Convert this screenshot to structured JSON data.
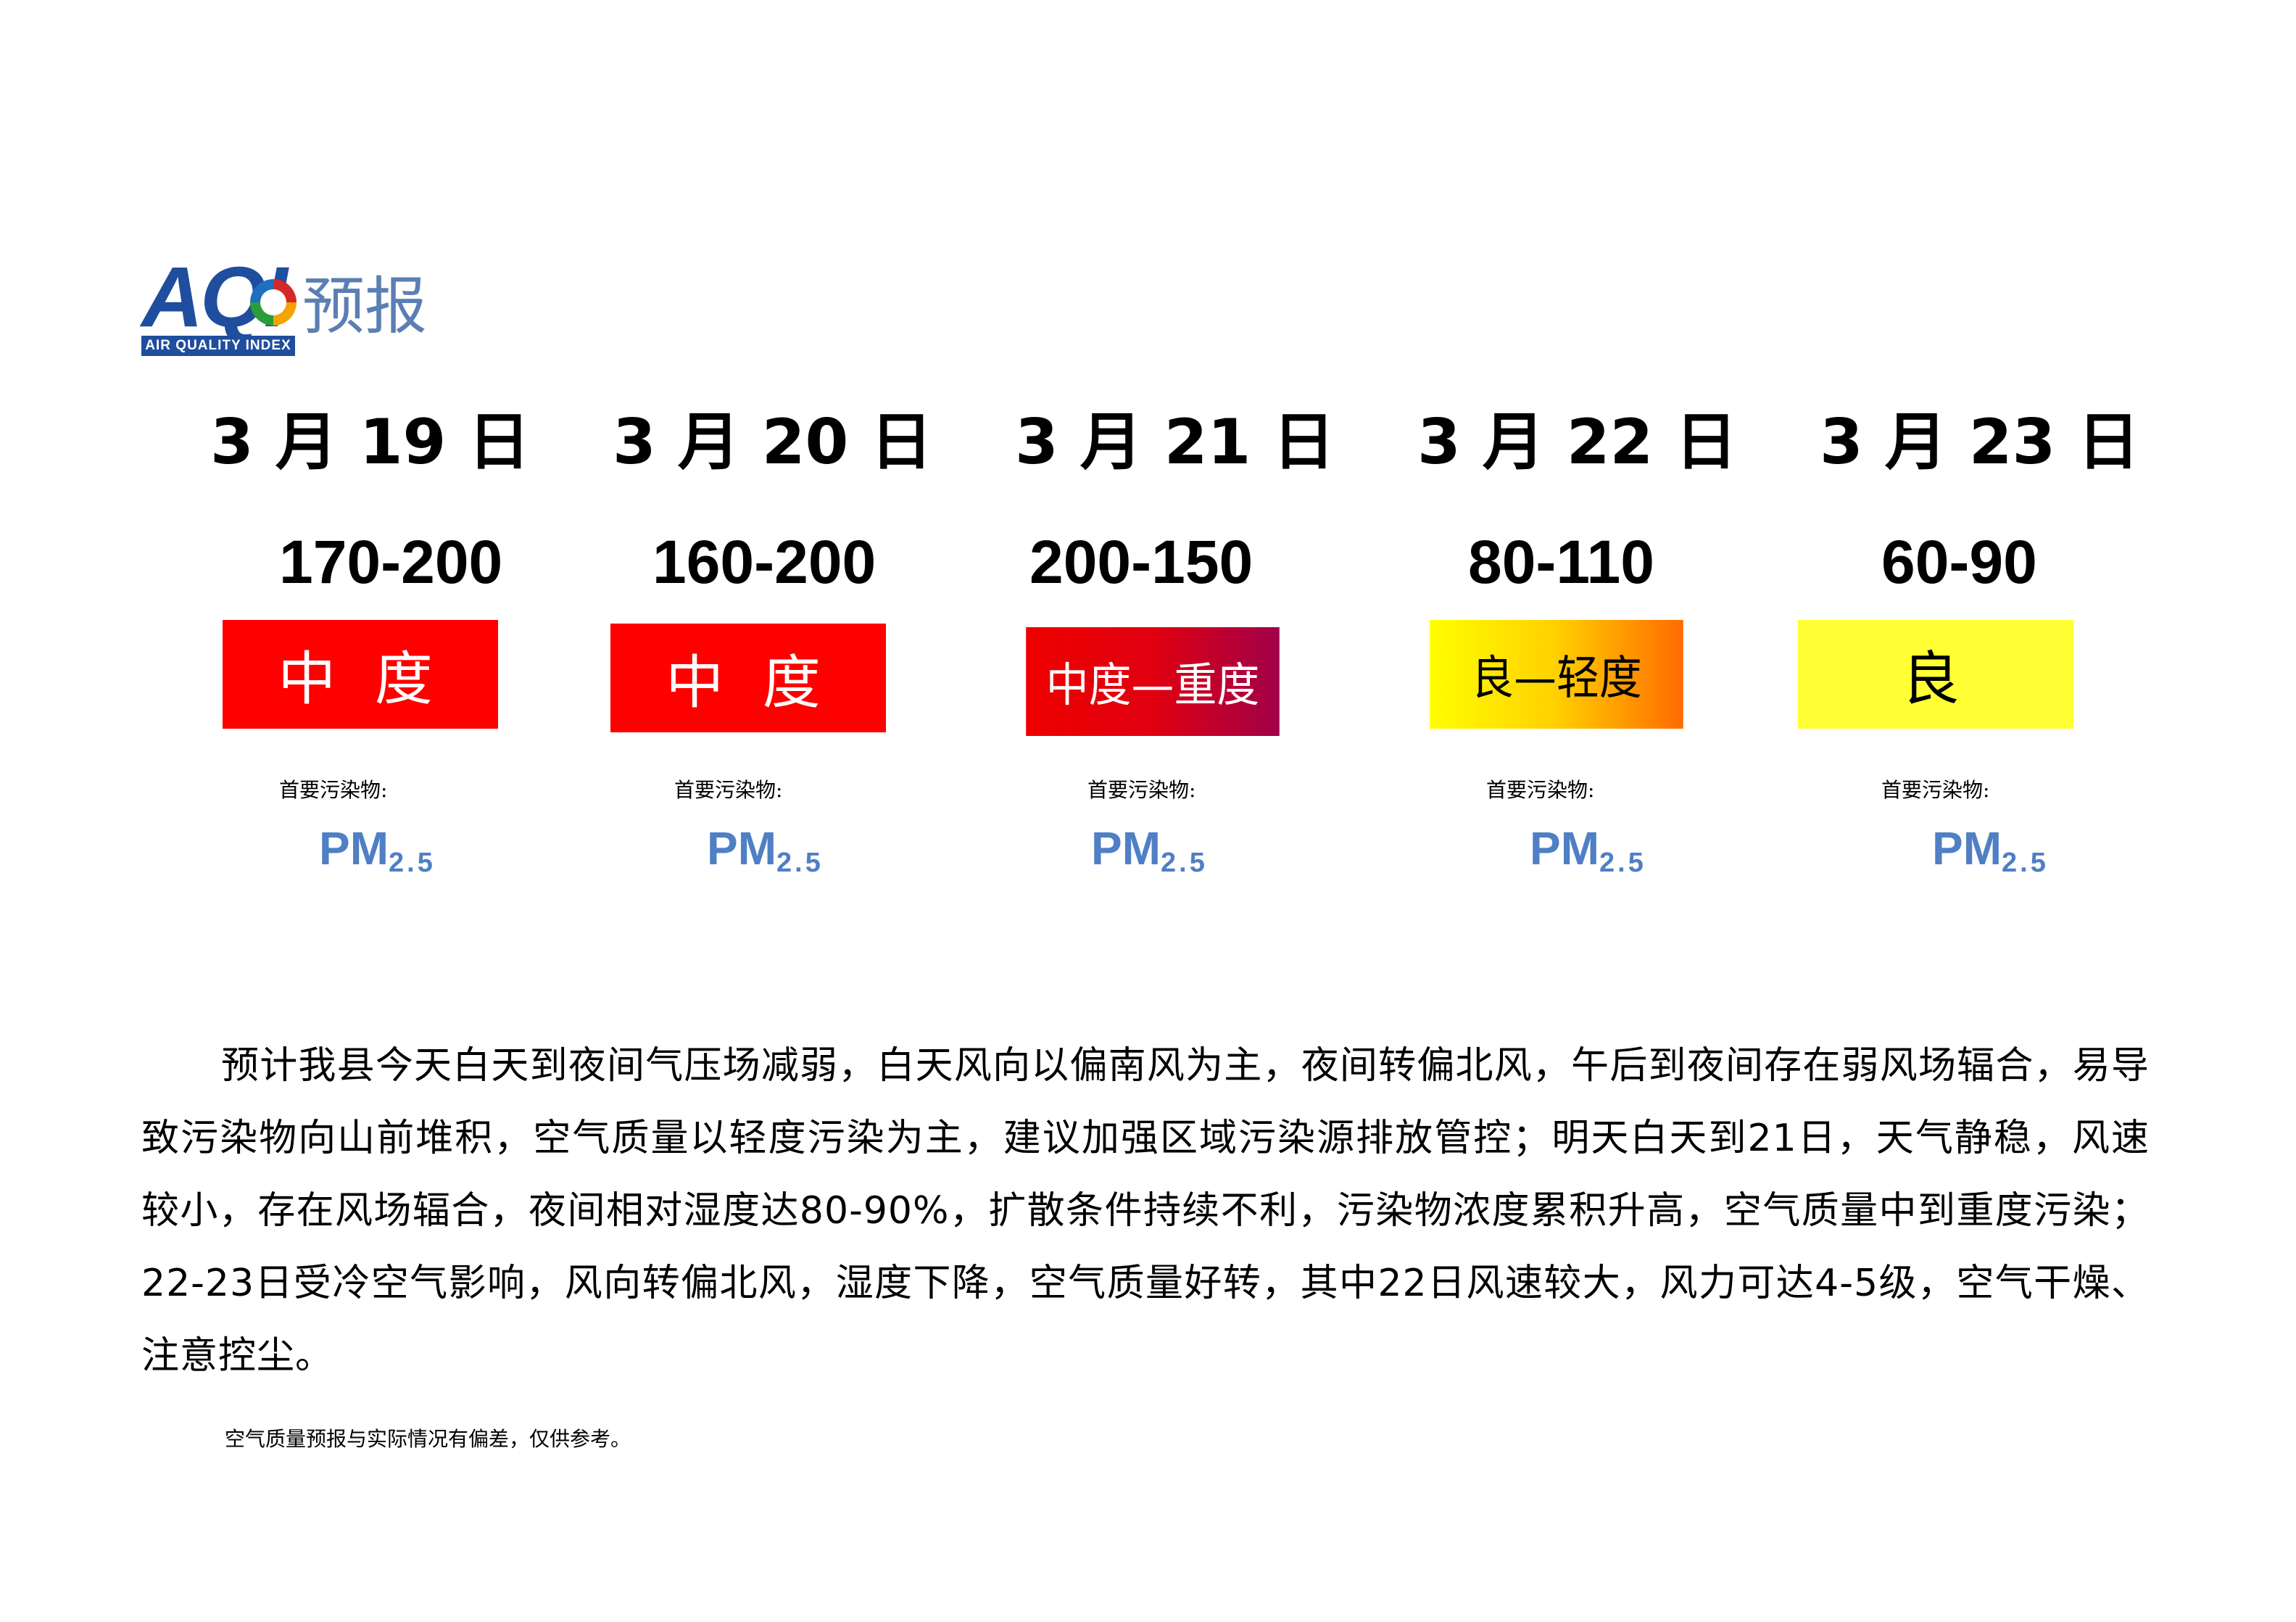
{
  "logo": {
    "aqi": "AQI",
    "band": "AIR QUALITY INDEX",
    "title": "预报"
  },
  "days": [
    {
      "date": "3 月 19 日",
      "range": "170-200",
      "level": "中 度",
      "pollutant_label": "首要污染物:",
      "pollutant": "PM",
      "pollutant_sub": "2.5"
    },
    {
      "date": "3 月 20 日",
      "range": "160-200",
      "level": "中 度",
      "pollutant_label": "首要污染物:",
      "pollutant": "PM",
      "pollutant_sub": "2.5"
    },
    {
      "date": "3 月 21 日",
      "range": "200-150",
      "level": "中度—重度",
      "pollutant_label": "首要污染物:",
      "pollutant": "PM",
      "pollutant_sub": "2.5"
    },
    {
      "date": "3 月 22 日",
      "range": "80-110",
      "level": "良—轻度",
      "pollutant_label": "首要污染物:",
      "pollutant": "PM",
      "pollutant_sub": "2.5"
    },
    {
      "date": "3 月 23 日",
      "range": "60-90",
      "level": "良",
      "pollutant_label": "首要污染物:",
      "pollutant": "PM",
      "pollutant_sub": "2.5"
    }
  ],
  "level_colors": {
    "moderate": "#ff0000",
    "moderate_heavy": [
      "#ee0000",
      "#a0004a"
    ],
    "good_light": [
      "#ffff00",
      "#ff6a00"
    ],
    "good": "#ffff33"
  },
  "description": "预计我县今天白天到夜间气压场减弱，白天风向以偏南风为主，夜间转偏北风，午后到夜间存在弱风场辐合，易导致污染物向山前堆积，空气质量以轻度污染为主，建议加强区域污染源排放管控；明天白天到21日，天气静稳，风速较小，存在风场辐合，夜间相对湿度达80-90%，扩散条件持续不利，污染物浓度累积升高，空气质量中到重度污染；22-23日受冷空气影响，风向转偏北风，湿度下降，空气质量好转，其中22日风速较大，风力可达4-5级，空气干燥、注意控尘。",
  "note": "空气质量预报与实际情况有偏差，仅供参考。"
}
